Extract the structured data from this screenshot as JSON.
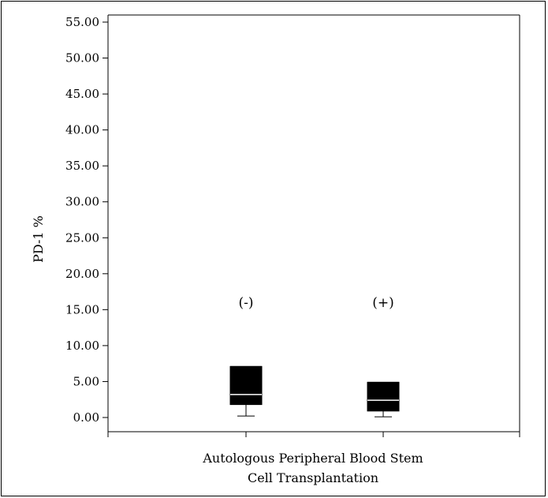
{
  "chart_data": {
    "type": "box",
    "ylabel": "PD-1 %",
    "xlabel_lines": [
      "Autologous Peripheral Blood Stem",
      "Cell Transplantation"
    ],
    "ylim": [
      0,
      55
    ],
    "y_ticks": [
      "0.00",
      "5.00",
      "10.00",
      "15.00",
      "20.00",
      "25.00",
      "30.00",
      "35.00",
      "40.00",
      "45.00",
      "50.00",
      "55.00"
    ],
    "grid": false,
    "colors": {
      "box": "#000000",
      "median": "#ffffff",
      "axis": "#000000"
    },
    "groups": [
      {
        "label": "(-)",
        "min": 0.2,
        "q1": 1.8,
        "median": 3.2,
        "q3": 7.1,
        "max": 7.1
      },
      {
        "label": "(+)",
        "min": 0.1,
        "q1": 0.9,
        "median": 2.4,
        "q3": 4.9,
        "max": 4.9
      }
    ]
  }
}
